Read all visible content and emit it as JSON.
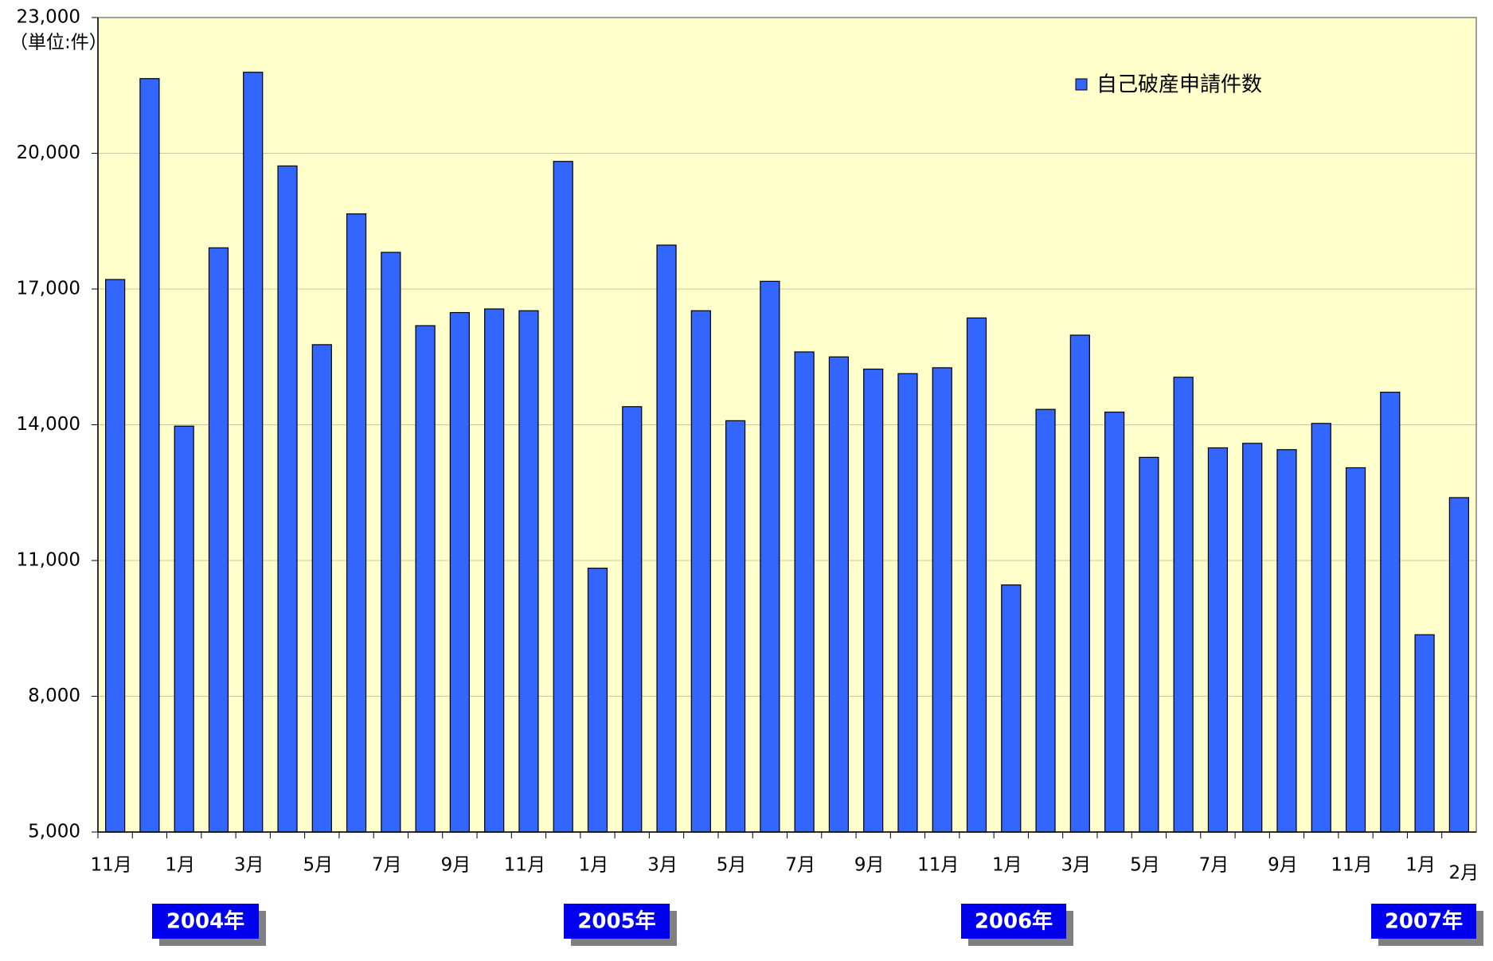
{
  "chart_data": {
    "type": "bar",
    "unit_label": "（単位:件）",
    "legend_label": "自己破産申請件数",
    "series": [
      {
        "name": "自己破産申請件数",
        "color": "#3366ff",
        "values": [
          17210,
          21650,
          13970,
          17910,
          21790,
          19720,
          15770,
          18660,
          17810,
          16190,
          16480,
          16560,
          16520,
          19820,
          10830,
          14400,
          17970,
          16520,
          14090,
          17170,
          15610,
          15500,
          15230,
          15130,
          15260,
          16360,
          10460,
          14340,
          15980,
          14280,
          13280,
          15050,
          13490,
          13590,
          13450,
          14030,
          13050,
          14720,
          9360,
          12390
        ]
      }
    ],
    "categories": [
      "11月",
      null,
      "1月",
      null,
      "3月",
      null,
      "5月",
      null,
      "7月",
      null,
      "9月",
      null,
      "11月",
      null,
      "1月",
      null,
      "3月",
      null,
      "5月",
      null,
      "7月",
      null,
      "9月",
      null,
      "11月",
      null,
      "1月",
      null,
      "3月",
      null,
      "5月",
      null,
      "7月",
      null,
      "9月",
      null,
      "11月",
      null,
      "1月",
      "2月"
    ],
    "year_labels": [
      "2004年",
      "2005年",
      "2006年",
      "2007年"
    ],
    "ylim": [
      5000,
      23000
    ],
    "yticks": [
      {
        "value": 5000,
        "label": "5,000"
      },
      {
        "value": 8000,
        "label": "8,000"
      },
      {
        "value": 11000,
        "label": "11,000"
      },
      {
        "value": 14000,
        "label": "14,000"
      },
      {
        "value": 17000,
        "label": "17,000"
      },
      {
        "value": 20000,
        "label": "20,000"
      },
      {
        "value": 23000,
        "label": "23,000"
      }
    ],
    "grid": true,
    "background": "#ffffcc",
    "legend_position": "upper right"
  }
}
